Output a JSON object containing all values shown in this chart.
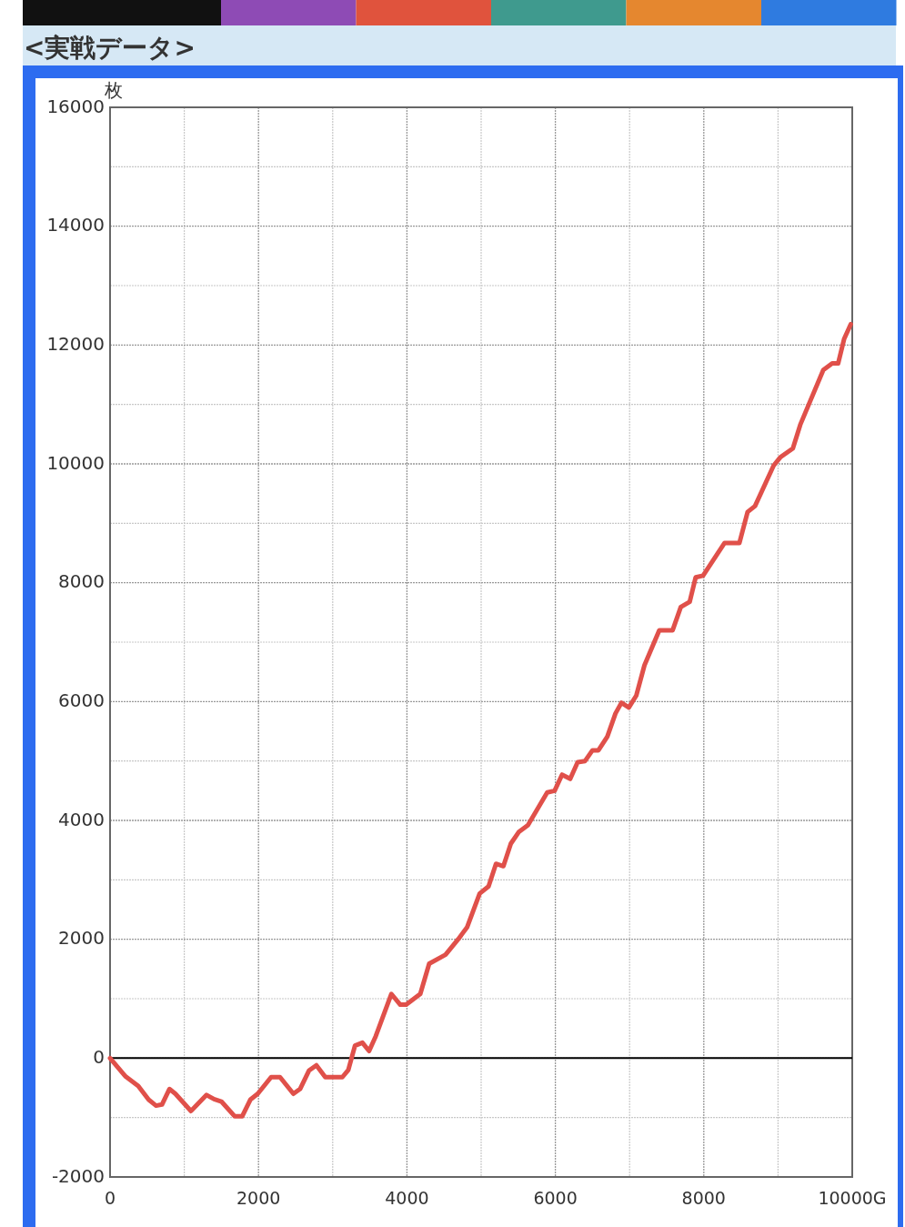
{
  "chart_data": {
    "type": "line",
    "title": "<実戦データ>",
    "ylabel": "枚",
    "xlim": [
      0,
      10000
    ],
    "ylim": [
      -2000,
      16000
    ],
    "xticks": [
      0,
      2000,
      4000,
      6000,
      8000,
      {
        "value": 10000,
        "label": "10000G"
      }
    ],
    "yticks": [
      -2000,
      0,
      2000,
      4000,
      6000,
      8000,
      10000,
      12000,
      14000,
      16000
    ],
    "grid": true,
    "marker": "none",
    "line_style": "solid",
    "ref_lines": [
      {
        "axis": "y",
        "value": 0,
        "color": "#000000"
      }
    ],
    "series": [
      {
        "color": "#e0504a",
        "x": [
          0,
          210,
          380,
          520,
          620,
          700,
          800,
          880,
          1090,
          1300,
          1400,
          1500,
          1680,
          1780,
          1890,
          1990,
          2170,
          2290,
          2470,
          2560,
          2680,
          2780,
          2900,
          3130,
          3210,
          3300,
          3400,
          3490,
          3580,
          3790,
          3910,
          3990,
          4180,
          4300,
          4520,
          4690,
          4810,
          4980,
          5100,
          5200,
          5300,
          5400,
          5510,
          5630,
          5890,
          5990,
          6090,
          6200,
          6300,
          6400,
          6500,
          6580,
          6700,
          6810,
          6890,
          6990,
          7090,
          7200,
          7400,
          7580,
          7690,
          7810,
          7890,
          7990,
          8280,
          8480,
          8590,
          8690,
          8940,
          9030,
          9200,
          9300,
          9610,
          9730,
          9810,
          9890,
          9980
        ],
        "values": [
          0,
          -310,
          -470,
          -700,
          -800,
          -780,
          -520,
          -600,
          -890,
          -620,
          -690,
          -730,
          -980,
          -980,
          -700,
          -600,
          -320,
          -320,
          -600,
          -520,
          -210,
          -120,
          -320,
          -320,
          -200,
          210,
          260,
          120,
          370,
          1080,
          900,
          900,
          1080,
          1590,
          1740,
          2000,
          2200,
          2770,
          2890,
          3270,
          3230,
          3610,
          3810,
          3920,
          4470,
          4500,
          4770,
          4700,
          4980,
          5000,
          5180,
          5180,
          5410,
          5800,
          5980,
          5900,
          6100,
          6610,
          7200,
          7200,
          7590,
          7680,
          8090,
          8120,
          8670,
          8670,
          9190,
          9290,
          9970,
          10110,
          10260,
          10660,
          11580,
          11690,
          11690,
          12100,
          12350
        ]
      }
    ]
  }
}
